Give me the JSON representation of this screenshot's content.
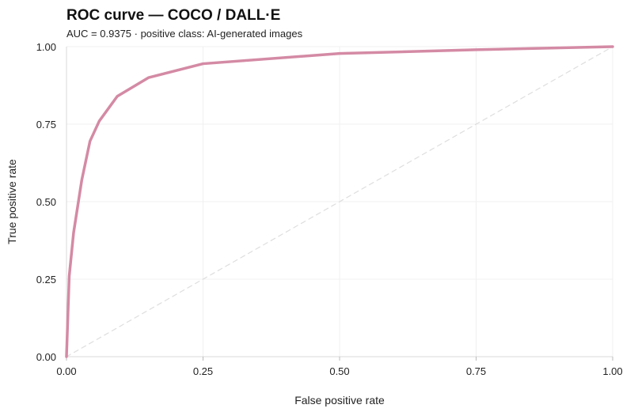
{
  "chart_data": {
    "type": "line",
    "title": "ROC curve — COCO / DALL·E",
    "subtitle": "AUC = 0.9375 · positive class: AI-generated images",
    "xlabel": "False positive rate",
    "ylabel": "True positive rate",
    "xlim": [
      0,
      1
    ],
    "ylim": [
      0,
      1
    ],
    "xticks": [
      "0.00",
      "0.25",
      "0.50",
      "0.75",
      "1.00"
    ],
    "yticks": [
      "0.00",
      "0.25",
      "0.50",
      "0.75",
      "1.00"
    ],
    "grid": true,
    "series": [
      {
        "color": "#d48aa4",
        "x": [
          0,
          0.005,
          0.013,
          0.028,
          0.043,
          0.06,
          0.093,
          0.15,
          0.25,
          0.5,
          0.75,
          1.0
        ],
        "y": [
          0,
          0.26,
          0.4,
          0.57,
          0.695,
          0.76,
          0.84,
          0.9,
          0.945,
          0.978,
          0.99,
          1.0
        ]
      },
      {
        "style": "dashed",
        "color": "#dedede",
        "x": [
          0,
          1
        ],
        "y": [
          0,
          1
        ]
      }
    ]
  }
}
